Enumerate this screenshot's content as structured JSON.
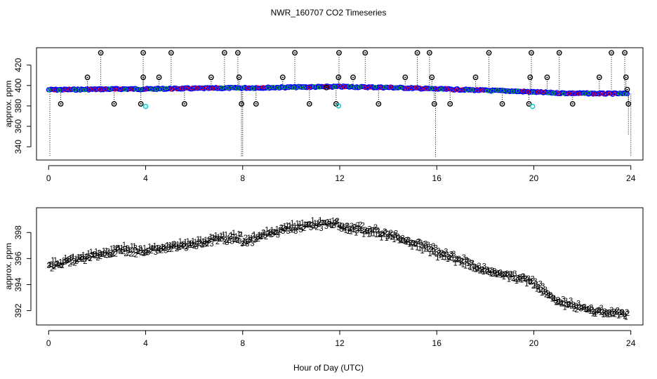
{
  "title": "NWR_160707  CO2 Timeseries",
  "xlabel": "Hour of Day (UTC)",
  "colors": {
    "background": "#ffffff",
    "axis": "#000000",
    "flagged_points": "#000000",
    "highlight_points": "#00cccc",
    "series_3": "#0000ff",
    "series_1": "#ff0000",
    "series_2": "#00cc00",
    "series_mid": "#ff8c00"
  },
  "chart_data": [
    {
      "type": "scatter",
      "title": "NWR_160707  CO2 Timeseries",
      "xlabel": "",
      "ylabel": "approx. ppm",
      "xlim": [
        -0.5,
        24.5
      ],
      "ylim": [
        327,
        437
      ],
      "xticks": [
        0,
        4,
        8,
        12,
        16,
        20,
        24
      ],
      "yticks": [
        340,
        360,
        380,
        400,
        420
      ],
      "baseline": {
        "name": "continuous",
        "x": [
          0,
          1,
          2,
          3,
          4,
          5,
          6,
          7,
          8,
          9,
          10,
          11,
          12,
          13,
          14,
          15,
          16,
          17,
          18,
          19,
          20,
          21,
          22,
          23,
          23.9
        ],
        "y": [
          395.8,
          396.0,
          396.3,
          396.6,
          396.5,
          396.9,
          397.1,
          397.4,
          397.6,
          397.9,
          398.3,
          398.6,
          398.9,
          398.4,
          398.1,
          397.4,
          396.6,
          396.0,
          395.2,
          394.6,
          393.6,
          392.6,
          392.3,
          392.0,
          392.0
        ]
      },
      "flagged": {
        "name": "flagged samples",
        "x": [
          0.5,
          1.6,
          2.15,
          2.7,
          3.8,
          3.9,
          3.9,
          4.55,
          5.05,
          5.6,
          6.7,
          7.25,
          7.8,
          7.85,
          7.95,
          8.55,
          9.65,
          10.15,
          10.75,
          11.45,
          11.85,
          11.95,
          11.97,
          12.55,
          13.05,
          13.6,
          14.7,
          15.2,
          15.7,
          15.8,
          15.9,
          16.55,
          17.6,
          18.15,
          18.7,
          19.8,
          19.85,
          19.9,
          20.55,
          21.05,
          21.6,
          22.7,
          23.2,
          23.75,
          23.8,
          23.85,
          23.9
        ],
        "y": [
          382,
          408,
          432,
          382,
          382,
          408,
          432,
          408,
          432,
          382,
          408,
          432,
          432,
          408,
          382,
          382,
          408,
          432,
          382,
          398,
          382,
          408,
          432,
          408,
          432,
          382,
          408,
          432,
          432,
          408,
          382,
          382,
          408,
          432,
          382,
          382,
          408,
          432,
          408,
          432,
          382,
          408,
          432,
          432,
          408,
          396,
          382
        ],
        "drop_bottoms": [
          [
            0.05,
            330
          ],
          [
            7.95,
            330
          ],
          [
            8.0,
            330
          ],
          [
            15.95,
            330
          ],
          [
            23.9,
            352
          ],
          [
            24.0,
            330
          ]
        ]
      },
      "highlight": {
        "name": "cyan samples",
        "x": [
          4.0,
          11.95,
          19.95
        ],
        "y": [
          379.5,
          380.0,
          379.5
        ]
      }
    },
    {
      "type": "scatter",
      "title": "",
      "xlabel": "Hour of Day (UTC)",
      "ylabel": "approx. ppm",
      "xlim": [
        -0.5,
        24.5
      ],
      "ylim": [
        390.9,
        399.9
      ],
      "xticks": [
        0,
        4,
        8,
        12,
        16,
        20,
        24
      ],
      "yticks": [
        392,
        394,
        396,
        398
      ],
      "series": [
        {
          "name": "3",
          "marker": "3",
          "x": [
            0,
            1,
            2,
            3,
            3.9,
            4.0,
            5,
            6,
            7,
            7.95,
            8.0,
            9,
            10,
            11,
            11.9,
            12.0,
            13,
            14,
            15,
            15.9,
            16.0,
            17,
            18,
            19,
            19.9,
            20.0,
            21,
            22,
            23,
            23.9
          ],
          "y": [
            395.5,
            395.9,
            396.3,
            396.7,
            396.6,
            396.5,
            396.8,
            397.1,
            397.4,
            397.6,
            397.1,
            397.8,
            398.3,
            398.5,
            398.7,
            398.5,
            398.3,
            397.9,
            397.3,
            396.8,
            396.6,
            396.0,
            395.2,
            394.8,
            394.4,
            394.3,
            392.9,
            392.3,
            392.0,
            391.9
          ]
        },
        {
          "name": "1",
          "marker": "1",
          "x": [
            0,
            1,
            2,
            3,
            3.9,
            4.0,
            5,
            6,
            7,
            7.95,
            8.0,
            9,
            10,
            11,
            11.9,
            12.0,
            13,
            14,
            15,
            15.9,
            16.0,
            17,
            18,
            19,
            19.9,
            20.0,
            21,
            22,
            23,
            23.9
          ],
          "y": [
            395.7,
            396.1,
            396.5,
            396.9,
            396.8,
            396.7,
            397.1,
            397.4,
            397.7,
            397.9,
            397.3,
            398.1,
            398.6,
            398.8,
            398.9,
            398.4,
            398.1,
            397.7,
            397.0,
            396.5,
            396.3,
            395.7,
            395.0,
            394.6,
            394.2,
            394.0,
            392.6,
            392.1,
            391.8,
            391.7
          ]
        },
        {
          "name": "2",
          "marker": "2",
          "x": [
            0,
            1,
            2,
            3,
            3.9,
            4.0,
            5,
            6,
            7,
            7.95,
            8.0,
            9,
            10,
            11,
            11.9,
            12.0,
            13,
            14,
            15,
            15.9,
            16.0,
            17,
            18,
            19,
            19.9,
            20.0,
            21,
            22,
            23,
            23.9
          ],
          "y": [
            395.4,
            395.8,
            396.2,
            396.6,
            396.5,
            396.6,
            396.9,
            397.2,
            397.5,
            397.7,
            397.4,
            397.9,
            398.4,
            398.6,
            398.8,
            398.6,
            398.4,
            398.0,
            397.3,
            396.7,
            396.5,
            395.9,
            395.1,
            394.7,
            394.3,
            394.1,
            392.7,
            392.2,
            391.9,
            391.8
          ]
        }
      ]
    }
  ]
}
